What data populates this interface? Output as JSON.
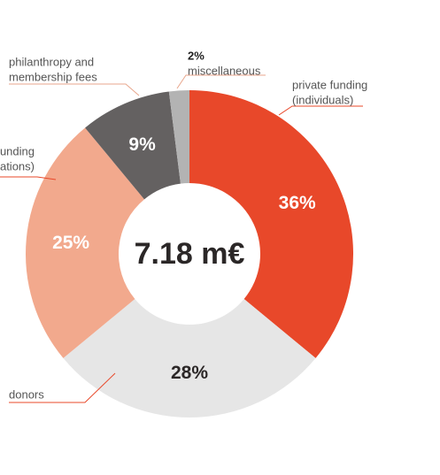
{
  "chart_data": {
    "type": "pie",
    "total_label": "7.18 m€",
    "slices": [
      {
        "label": "private funding (individuals)",
        "value": 36,
        "display": "36%",
        "color": "#e8482a",
        "text_color": "#ffffff"
      },
      {
        "label": "donors",
        "value": 28,
        "display": "28%",
        "color": "#e6e6e6",
        "text_color": "#2b2727"
      },
      {
        "label": "funding (foundations)",
        "value": 25,
        "display": "25%",
        "color": "#f2a98d",
        "text_color": "#ffffff"
      },
      {
        "label": "philanthropy and membership fees",
        "value": 9,
        "display": "9%",
        "color": "#646161",
        "text_color": "#ffffff"
      },
      {
        "label": "miscellaneous",
        "value": 2,
        "display": "2%",
        "color": "#b3b3b3",
        "text_color": "#222222"
      }
    ],
    "annotations": [
      {
        "lines": [
          "private funding",
          "(individuals)"
        ],
        "line_color": "#e8482a"
      },
      {
        "lines": [
          "donors"
        ],
        "line_color": "#e8482a"
      },
      {
        "lines": [
          "funding",
          "(foundations)"
        ],
        "line_color": "#e8482a"
      },
      {
        "lines": [
          "philanthropy and",
          "membership fees"
        ],
        "line_color": "#e8a68c"
      },
      {
        "lines": [
          "2%",
          "miscellaneous"
        ],
        "line_color": "#e8a68c"
      }
    ]
  }
}
